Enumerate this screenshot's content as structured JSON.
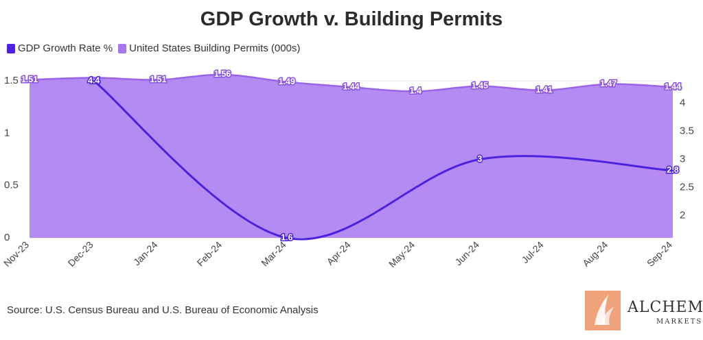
{
  "chart_data": {
    "type": "line",
    "title": "GDP Growth v. Building Permits",
    "categories": [
      "Nov-23",
      "Dec-23",
      "Jan-24",
      "Feb-24",
      "Mar-24",
      "Apr-24",
      "May-24",
      "Jun-24",
      "Jul-24",
      "Aug-24",
      "Sep-24"
    ],
    "series": [
      {
        "name": "GDP Growth Rate %",
        "axis": "right",
        "color": "#4a22e0",
        "values": [
          null,
          4.4,
          null,
          null,
          1.6,
          null,
          null,
          3.0,
          null,
          null,
          2.8
        ],
        "labels": [
          null,
          "4.4",
          null,
          null,
          "1.6",
          null,
          null,
          "3",
          null,
          null,
          "2.8"
        ]
      },
      {
        "name": "United States Building Permits (000s)",
        "axis": "left",
        "type": "area",
        "color": "#a777f0",
        "values": [
          1.51,
          1.53,
          1.51,
          1.56,
          1.49,
          1.44,
          1.4,
          1.45,
          1.41,
          1.47,
          1.44
        ],
        "labels": [
          "1.51",
          "",
          "1.51",
          "1.56",
          "1.49",
          "1.44",
          "1.4",
          "1.45",
          "1.41",
          "1.47",
          "1.44"
        ]
      }
    ],
    "left_axis": {
      "ylim": [
        0,
        1.5
      ],
      "ticks": [
        "0",
        "0.5",
        "1",
        "1.5"
      ],
      "tick_values": [
        0,
        0.5,
        1,
        1.5
      ]
    },
    "right_axis": {
      "ylim": [
        1.6,
        4.4
      ],
      "ticks": [
        "2",
        "2.5",
        "3",
        "3.5",
        "4"
      ],
      "tick_values": [
        2,
        2.5,
        3,
        3.5,
        4
      ]
    },
    "legend_position": "top-left",
    "grid": true
  },
  "legend": {
    "items": [
      {
        "label": "GDP Growth Rate %",
        "color": "#4a22e0"
      },
      {
        "label": "United States Building Permits (000s)",
        "color": "#a777f0"
      }
    ]
  },
  "source": "Source: U.S. Census Bureau and U.S. Bureau of Economic Analysis",
  "logo": {
    "name": "ALCHEMY",
    "sub": "MARKETS",
    "color": "#f0a27a"
  }
}
